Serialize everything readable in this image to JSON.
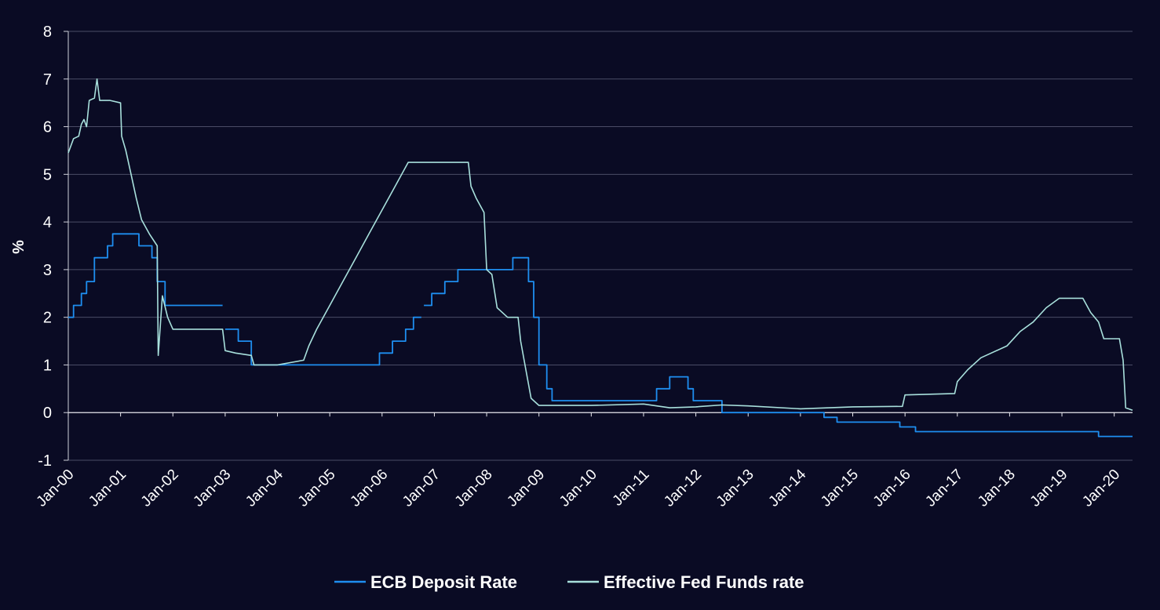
{
  "chart_data": {
    "type": "line",
    "title": "",
    "xlabel": "",
    "ylabel": "%",
    "ylim": [
      -1,
      8
    ],
    "yticks": [
      -1,
      0,
      1,
      2,
      3,
      4,
      5,
      6,
      7,
      8
    ],
    "xlim": [
      2000,
      2020.35
    ],
    "xtick_labels": [
      "Jan-00",
      "Jan-01",
      "Jan-02",
      "Jan-03",
      "Jan-04",
      "Jan-05",
      "Jan-06",
      "Jan-07",
      "Jan-08",
      "Jan-09",
      "Jan-10",
      "Jan-11",
      "Jan-12",
      "Jan-13",
      "Jan-14",
      "Jan-15",
      "Jan-16",
      "Jan-17",
      "Jan-18",
      "Jan-19",
      "Jan-20"
    ],
    "grid": true,
    "legend_position": "bottom",
    "series": [
      {
        "name": "ECB Deposit Rate",
        "color": "#1e8ef0",
        "step": true,
        "points": [
          [
            2000.0,
            2.0
          ],
          [
            2000.1,
            2.25
          ],
          [
            2000.25,
            2.5
          ],
          [
            2000.35,
            2.75
          ],
          [
            2000.5,
            3.25
          ],
          [
            2000.75,
            3.5
          ],
          [
            2000.85,
            3.75
          ],
          [
            2001.35,
            3.5
          ],
          [
            2001.6,
            3.25
          ],
          [
            2001.7,
            2.75
          ],
          [
            2001.85,
            2.25
          ],
          [
            2002.95,
            null
          ],
          [
            2003.0,
            1.75
          ],
          [
            2003.25,
            1.5
          ],
          [
            2003.5,
            1.0
          ],
          [
            2005.95,
            1.25
          ],
          [
            2006.2,
            1.5
          ],
          [
            2006.45,
            1.75
          ],
          [
            2006.6,
            2.0
          ],
          [
            2006.75,
            null
          ],
          [
            2006.8,
            2.25
          ],
          [
            2006.95,
            2.5
          ],
          [
            2007.2,
            2.75
          ],
          [
            2007.45,
            3.0
          ],
          [
            2008.5,
            3.25
          ],
          [
            2008.8,
            2.75
          ],
          [
            2008.9,
            2.0
          ],
          [
            2009.0,
            1.0
          ],
          [
            2009.15,
            0.5
          ],
          [
            2009.25,
            0.25
          ],
          [
            2011.25,
            0.5
          ],
          [
            2011.5,
            0.75
          ],
          [
            2011.85,
            0.5
          ],
          [
            2011.95,
            0.25
          ],
          [
            2012.5,
            0.0
          ],
          [
            2014.45,
            -0.1
          ],
          [
            2014.7,
            -0.2
          ],
          [
            2015.9,
            -0.3
          ],
          [
            2016.2,
            -0.4
          ],
          [
            2019.7,
            -0.5
          ],
          [
            2020.35,
            -0.5
          ]
        ]
      },
      {
        "name": "Effective Fed Funds rate",
        "color": "#a8e0dc",
        "step": false,
        "points": [
          [
            2000.0,
            5.45
          ],
          [
            2000.1,
            5.75
          ],
          [
            2000.2,
            5.8
          ],
          [
            2000.25,
            6.05
          ],
          [
            2000.3,
            6.15
          ],
          [
            2000.35,
            6.0
          ],
          [
            2000.4,
            6.55
          ],
          [
            2000.5,
            6.6
          ],
          [
            2000.55,
            7.0
          ],
          [
            2000.6,
            6.55
          ],
          [
            2000.8,
            6.55
          ],
          [
            2001.0,
            6.5
          ],
          [
            2001.02,
            5.8
          ],
          [
            2001.1,
            5.5
          ],
          [
            2001.2,
            5.0
          ],
          [
            2001.3,
            4.5
          ],
          [
            2001.4,
            4.05
          ],
          [
            2001.55,
            3.75
          ],
          [
            2001.7,
            3.5
          ],
          [
            2001.72,
            1.2
          ],
          [
            2001.8,
            2.45
          ],
          [
            2001.9,
            2.0
          ],
          [
            2002.0,
            1.75
          ],
          [
            2002.5,
            1.75
          ],
          [
            2002.95,
            1.75
          ],
          [
            2003.0,
            1.3
          ],
          [
            2003.2,
            1.25
          ],
          [
            2003.5,
            1.2
          ],
          [
            2003.55,
            1.0
          ],
          [
            2004.0,
            1.0
          ],
          [
            2004.5,
            1.1
          ],
          [
            2004.6,
            1.4
          ],
          [
            2004.75,
            1.75
          ],
          [
            2005.0,
            2.25
          ],
          [
            2005.25,
            2.75
          ],
          [
            2005.5,
            3.25
          ],
          [
            2005.75,
            3.75
          ],
          [
            2006.0,
            4.25
          ],
          [
            2006.25,
            4.75
          ],
          [
            2006.5,
            5.25
          ],
          [
            2007.0,
            5.25
          ],
          [
            2007.5,
            5.25
          ],
          [
            2007.65,
            5.25
          ],
          [
            2007.7,
            4.75
          ],
          [
            2007.8,
            4.5
          ],
          [
            2007.95,
            4.2
          ],
          [
            2008.0,
            3.0
          ],
          [
            2008.1,
            2.9
          ],
          [
            2008.2,
            2.2
          ],
          [
            2008.4,
            2.0
          ],
          [
            2008.6,
            2.0
          ],
          [
            2008.65,
            1.5
          ],
          [
            2008.75,
            0.9
          ],
          [
            2008.85,
            0.3
          ],
          [
            2009.0,
            0.15
          ],
          [
            2010.0,
            0.15
          ],
          [
            2011.0,
            0.18
          ],
          [
            2011.5,
            0.1
          ],
          [
            2012.0,
            0.12
          ],
          [
            2012.5,
            0.16
          ],
          [
            2013.0,
            0.14
          ],
          [
            2014.0,
            0.08
          ],
          [
            2015.0,
            0.12
          ],
          [
            2015.95,
            0.13
          ],
          [
            2016.0,
            0.37
          ],
          [
            2016.95,
            0.4
          ],
          [
            2017.0,
            0.65
          ],
          [
            2017.2,
            0.9
          ],
          [
            2017.45,
            1.15
          ],
          [
            2017.95,
            1.4
          ],
          [
            2018.2,
            1.7
          ],
          [
            2018.45,
            1.9
          ],
          [
            2018.7,
            2.2
          ],
          [
            2018.95,
            2.4
          ],
          [
            2019.4,
            2.4
          ],
          [
            2019.55,
            2.1
          ],
          [
            2019.7,
            1.9
          ],
          [
            2019.8,
            1.55
          ],
          [
            2020.1,
            1.55
          ],
          [
            2020.17,
            1.1
          ],
          [
            2020.22,
            0.1
          ],
          [
            2020.35,
            0.05
          ]
        ]
      }
    ]
  }
}
